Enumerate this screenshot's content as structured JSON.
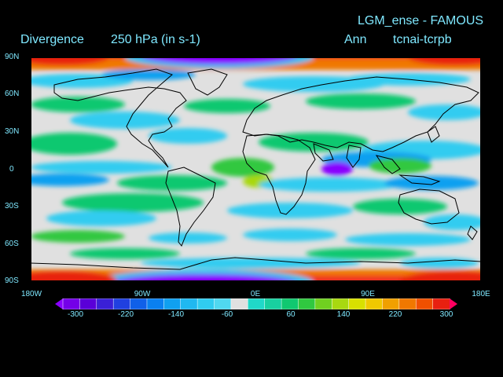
{
  "header": {
    "experiment": "LGM_ense - FAMOUS",
    "variable": "Divergence",
    "level": "250 hPa  (in s-1)",
    "season": "Ann",
    "run": "tcnai-tcrpb"
  },
  "axes": {
    "lat_labels": [
      "90N",
      "60N",
      "30N",
      "0",
      "30S",
      "60S",
      "90S"
    ],
    "lon_labels": [
      "180W",
      "90W",
      "0E",
      "90E",
      "180E"
    ]
  },
  "colorbar": {
    "labels": [
      "-300",
      "-220",
      "-140",
      "-60",
      "60",
      "140",
      "220",
      "300"
    ],
    "colors": [
      "#8800ff",
      "#7400e8",
      "#5a00d8",
      "#3a20d6",
      "#2040e0",
      "#1060e8",
      "#0a80f0",
      "#10a0f0",
      "#20b8f0",
      "#30ccf0",
      "#50d8f0",
      "#e0e0e0",
      "#20d8c8",
      "#18d0a0",
      "#10c870",
      "#30c840",
      "#70d020",
      "#a8d810",
      "#d8e000",
      "#f0c800",
      "#f0a000",
      "#f07800",
      "#f05000",
      "#e82010",
      "#ff0060"
    ]
  },
  "colors": {
    "background": "#000000",
    "text": "#7fe8ff",
    "neutral": "#e0e0e0",
    "coast": "#000000"
  }
}
